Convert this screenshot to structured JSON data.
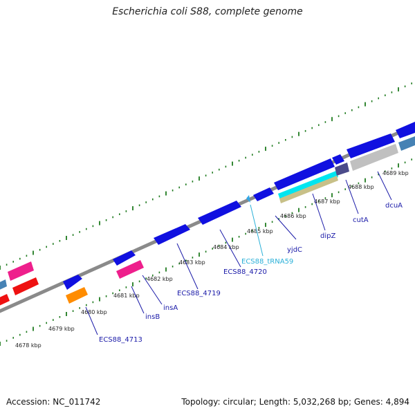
{
  "title": "Escherichia coli S88, complete genome",
  "footer": {
    "accession": "Accession: NC_011742",
    "summary": "Topology: circular; Length: 5,032,268 bp; Genes: 4,894"
  },
  "colors": {
    "backbone": "#8a8a8a",
    "scale_ticks": "#1e7a1e",
    "gene_label": "#1a1aa8",
    "trna_label": "#2ab0d8",
    "forward_cds": "#1010e0",
    "reverse_cds": "#1010e0",
    "mobile_element": "#ee1f8c",
    "red_feature": "#ee1111",
    "orange_feature": "#ff8c00",
    "steelblue_feature": "#4682b4",
    "gray_feature": "#c0c0c0",
    "navy_feature": "#4b4b8a",
    "cyan_feature": "#00e5f0",
    "khaki_feature": "#c8c088",
    "trna_feature": "#30a8e8"
  },
  "scale": {
    "unit": "kbp",
    "ticks": [
      {
        "label": "4678 kbp"
      },
      {
        "label": "4679 kbp"
      },
      {
        "label": "4680 kbp"
      },
      {
        "label": "4681 kbp"
      },
      {
        "label": "4682 kbp"
      },
      {
        "label": "4683 kbp"
      },
      {
        "label": "4684 kbp"
      },
      {
        "label": "4685 kbp"
      },
      {
        "label": "4686 kbp"
      },
      {
        "label": "4687 kbp"
      },
      {
        "label": "4688 kbp"
      },
      {
        "label": "4689 kbp"
      }
    ]
  },
  "gene_labels": [
    {
      "text": "ECS88_4713",
      "type": "gene"
    },
    {
      "text": "insB",
      "type": "gene"
    },
    {
      "text": "insA",
      "type": "gene"
    },
    {
      "text": "ECS88_4719",
      "type": "gene"
    },
    {
      "text": "ECS88_4720",
      "type": "gene"
    },
    {
      "text": "ECS88_tRNA59",
      "type": "trna"
    },
    {
      "text": "yjdC",
      "type": "gene"
    },
    {
      "text": "dipZ",
      "type": "gene"
    },
    {
      "text": "cutA",
      "type": "gene"
    },
    {
      "text": "dcuA",
      "type": "gene"
    }
  ]
}
